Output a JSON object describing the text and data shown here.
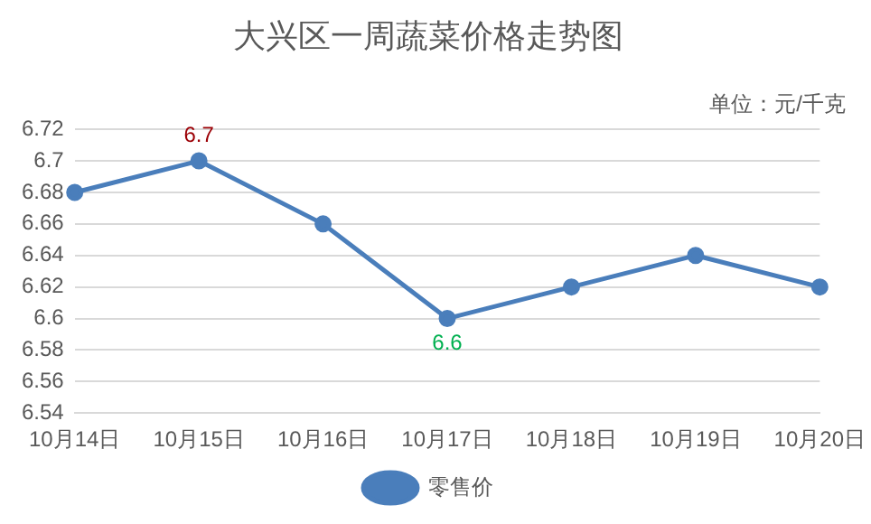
{
  "chart_data": {
    "type": "line",
    "title": "大兴区一周蔬菜价格走势图",
    "categories": [
      "10月14日",
      "10月15日",
      "10月16日",
      "10月17日",
      "10月18日",
      "10月19日",
      "10月20日"
    ],
    "series": [
      {
        "name": "零售价",
        "color": "#4a7ebb",
        "values": [
          6.68,
          6.7,
          6.66,
          6.6,
          6.62,
          6.64,
          6.62
        ]
      }
    ],
    "ylim": [
      6.54,
      6.72
    ],
    "yticks": [
      6.54,
      6.56,
      6.58,
      6.6,
      6.62,
      6.64,
      6.66,
      6.68,
      6.7,
      6.72
    ],
    "grid": "y",
    "legend": "bottom",
    "marker": "circle",
    "line_style": "solid",
    "annotations": [
      "单位：元/千克",
      {
        "text": "6.7",
        "x": "10月15日",
        "y": 6.7
      },
      {
        "text": "6.6",
        "x": "10月17日",
        "y": 6.6
      }
    ]
  }
}
